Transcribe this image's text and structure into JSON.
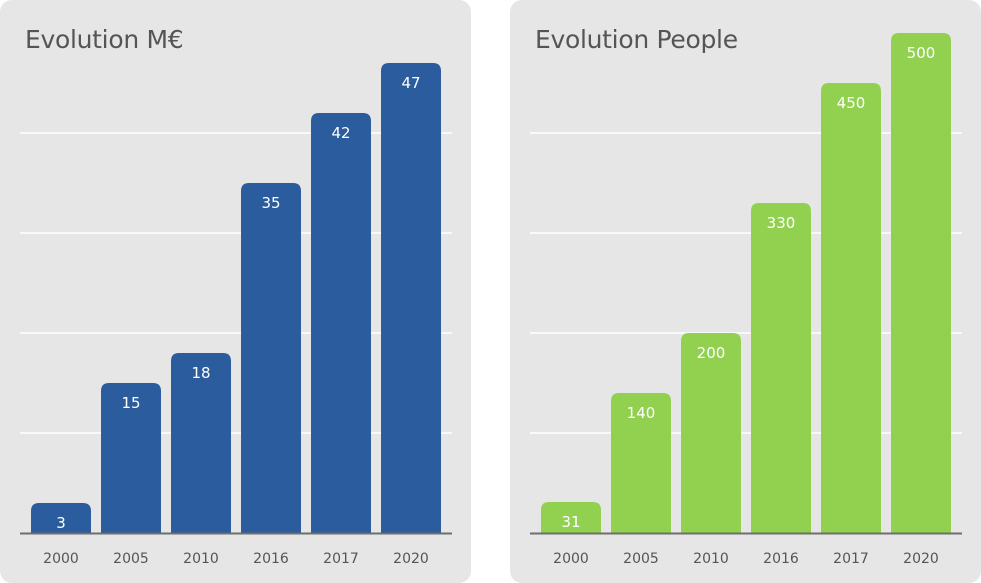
{
  "chart_data": [
    {
      "type": "bar",
      "title": "Evolution M€",
      "categories": [
        "2000",
        "2005",
        "2010",
        "2016",
        "2017",
        "2020"
      ],
      "values": [
        3,
        15,
        18,
        35,
        42,
        47
      ],
      "data_labels": [
        "3",
        "15",
        "18",
        "35",
        "42",
        "47"
      ],
      "ylim": [
        0,
        50
      ],
      "grid": true,
      "color": "#2b5c9e"
    },
    {
      "type": "bar",
      "title": "Evolution People",
      "categories": [
        "2000",
        "2005",
        "2010",
        "2016",
        "2017",
        "2020"
      ],
      "values": [
        31,
        140,
        200,
        330,
        450,
        500
      ],
      "data_labels": [
        "31",
        "140",
        "200",
        "330",
        "450",
        "500"
      ],
      "ylim": [
        0,
        500
      ],
      "grid": true,
      "color": "#92d050"
    }
  ]
}
